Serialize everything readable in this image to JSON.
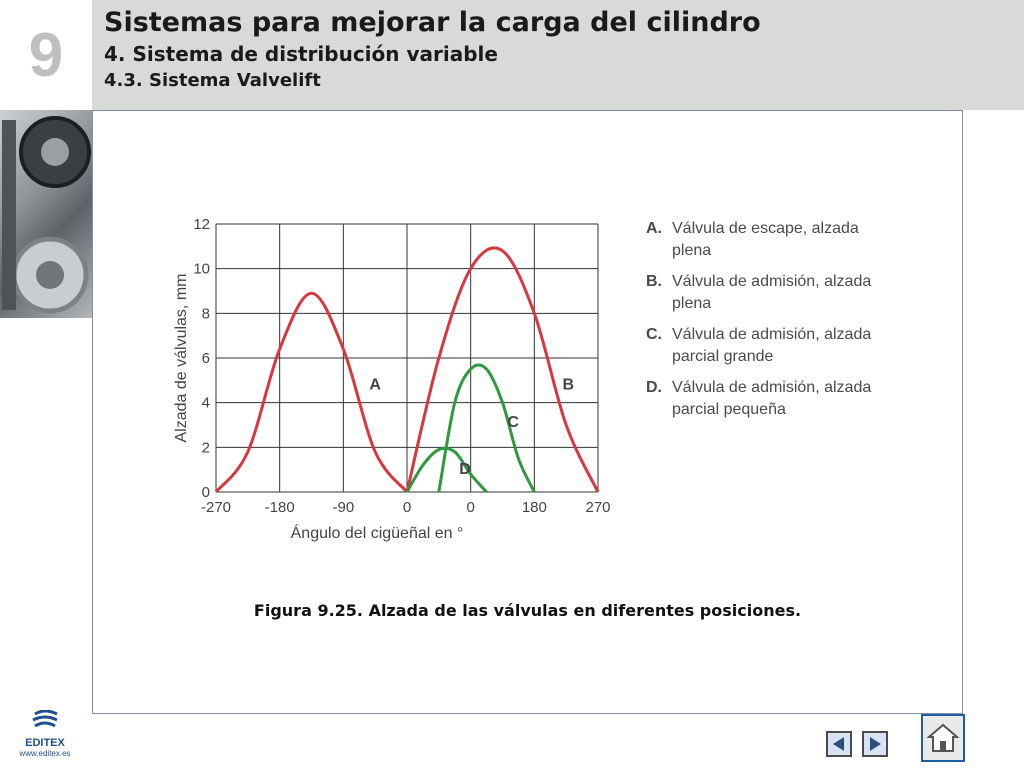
{
  "header": {
    "chapter": "9",
    "title": "Sistemas para mejorar la carga del cilindro",
    "subtitle": "4. Sistema de distribución variable",
    "subsubtitle": "4.3. Sistema Valvelift"
  },
  "caption": "Figura 9.25. Alzada de las válvulas en diferentes posiciones.",
  "legend": [
    {
      "key": "A.",
      "text": "Válvula de escape, alzada plena"
    },
    {
      "key": "B.",
      "text": "Válvula de admisión, alzada plena"
    },
    {
      "key": "C.",
      "text": "Válvula de admisión, alzada parcial grande"
    },
    {
      "key": "D.",
      "text": "Válvula de admisión, alzada parcial pequeña"
    }
  ],
  "logo": {
    "name": "EDITEX",
    "url": "www.editex.es"
  },
  "chart_data": {
    "type": "line",
    "xlabel": "Ángulo del cigüeñal en °",
    "ylabel": "Alzada de válvulas, mm",
    "x_ticks": [
      "-270",
      "-180",
      "-90",
      "0",
      "0",
      "180",
      "270"
    ],
    "y_ticks": [
      "0",
      "2",
      "4",
      "6",
      "8",
      "10",
      "12"
    ],
    "ylim": [
      0,
      12
    ],
    "grid": true,
    "x_units_note": "crankshaft angle; tick labels printed as shown",
    "series": [
      {
        "name": "A",
        "color": "#d9363e",
        "x": [
          -270,
          -225,
          -180,
          -135,
          -90,
          -45,
          0
        ],
        "y": [
          0,
          1.8,
          6.4,
          8.9,
          6.4,
          1.8,
          0
        ]
      },
      {
        "name": "B",
        "color": "#d9363e",
        "x": [
          0,
          45,
          90,
          135,
          180,
          225,
          270
        ],
        "y": [
          0,
          6.0,
          10.0,
          10.8,
          8.0,
          3.0,
          0
        ]
      },
      {
        "name": "C",
        "color": "#2e9a3e",
        "x": [
          45,
          67.5,
          90,
          112.5,
          135,
          157.5,
          180
        ],
        "y": [
          0,
          4.0,
          5.5,
          5.5,
          4.0,
          1.5,
          0
        ]
      },
      {
        "name": "D",
        "color": "#2e9a3e",
        "x": [
          0,
          22.5,
          45,
          67.5,
          90,
          112.5
        ],
        "y": [
          0,
          1.2,
          1.9,
          1.8,
          0.8,
          0
        ]
      }
    ]
  },
  "colors": {
    "header_bg": "#d9d9d9",
    "chapter_number": "#bfbfbf",
    "frame_border": "#7f8fa8"
  }
}
